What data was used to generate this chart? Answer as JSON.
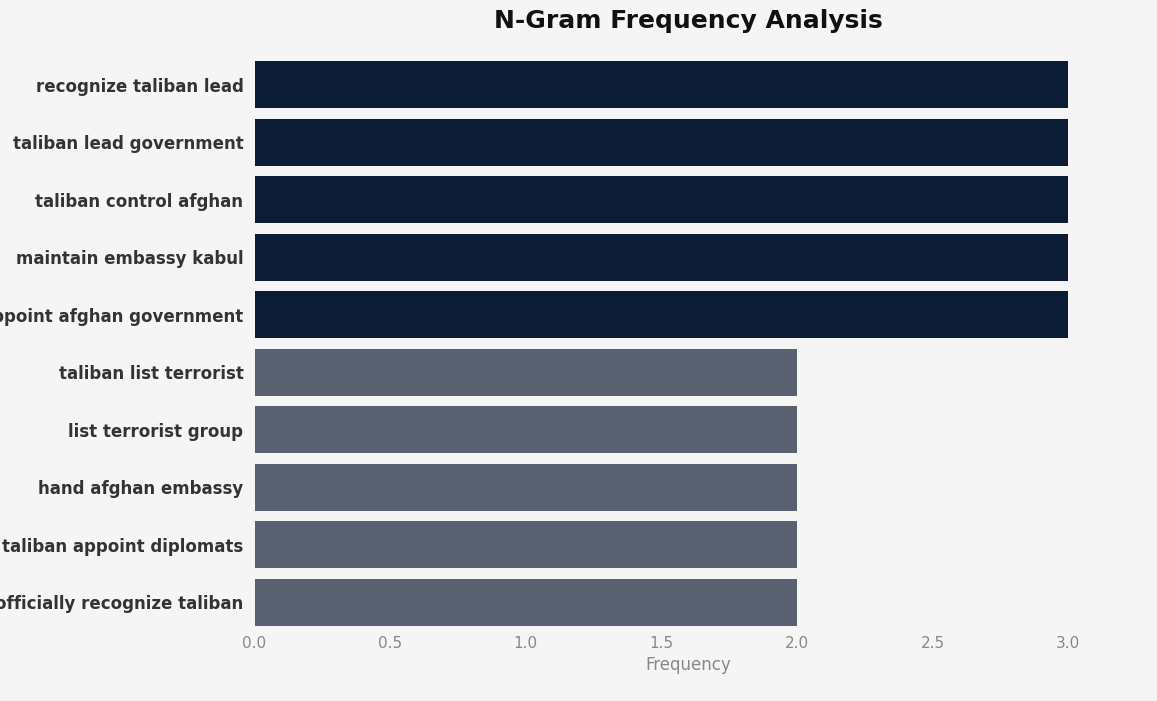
{
  "title": "N-Gram Frequency Analysis",
  "xlabel": "Frequency",
  "categories": [
    "officially recognize taliban",
    "taliban appoint diplomats",
    "hand afghan embassy",
    "list terrorist group",
    "taliban list terrorist",
    "appoint afghan government",
    "maintain embassy kabul",
    "taliban control afghan",
    "taliban lead government",
    "recognize taliban lead"
  ],
  "values": [
    2,
    2,
    2,
    2,
    2,
    3,
    3,
    3,
    3,
    3
  ],
  "bar_colors": [
    "#596070",
    "#596070",
    "#596070",
    "#596070",
    "#596070",
    "#0c1c35",
    "#0c1c35",
    "#0c1c35",
    "#0c1c35",
    "#0c1c35"
  ],
  "xlim": [
    0,
    3.2
  ],
  "xticks": [
    0.0,
    0.5,
    1.0,
    1.5,
    2.0,
    2.5,
    3.0
  ],
  "xtick_labels": [
    "0.0",
    "0.5",
    "1.0",
    "1.5",
    "2.0",
    "2.5",
    "3.0"
  ],
  "background_color": "#f5f5f5",
  "plot_bg_color": "#f5f5f5",
  "title_fontsize": 18,
  "label_fontsize": 12,
  "tick_fontsize": 11,
  "bar_height": 0.82
}
